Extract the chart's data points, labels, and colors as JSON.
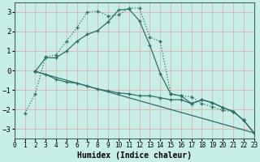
{
  "xlabel": "Humidex (Indice chaleur)",
  "bg_color": "#c8eee8",
  "grid_color": "#ddb8b8",
  "line_color": "#2d6e65",
  "xlim": [
    0,
    23
  ],
  "ylim": [
    -3.5,
    3.5
  ],
  "yticks": [
    -3,
    -2,
    -1,
    0,
    1,
    2,
    3
  ],
  "xticks": [
    0,
    1,
    2,
    3,
    4,
    5,
    6,
    7,
    8,
    9,
    10,
    11,
    12,
    13,
    14,
    15,
    16,
    17,
    18,
    19,
    20,
    21,
    22,
    23
  ],
  "series": [
    {
      "x": [
        1,
        2,
        3,
        4,
        5,
        6,
        7,
        8,
        9,
        10,
        11,
        12,
        13,
        14,
        15,
        16,
        17,
        18,
        19,
        20,
        21,
        22,
        23
      ],
      "y": [
        -2.2,
        -1.2,
        0.7,
        0.8,
        1.5,
        2.2,
        3.0,
        3.05,
        2.8,
        2.85,
        3.2,
        3.2,
        1.7,
        1.5,
        -1.2,
        -1.3,
        -1.35,
        -1.7,
        -1.85,
        -2.05,
        -2.1,
        -2.55,
        -3.2
      ],
      "linestyle": "dotted"
    },
    {
      "x": [
        2,
        3,
        4,
        5,
        6,
        7,
        8,
        9,
        10,
        11,
        12,
        13,
        14,
        15,
        16,
        17,
        18,
        19,
        20,
        21,
        22,
        23
      ],
      "y": [
        -0.05,
        0.65,
        0.65,
        1.0,
        1.5,
        1.85,
        2.05,
        2.5,
        3.1,
        3.15,
        2.55,
        1.3,
        -0.15,
        -1.2,
        -1.3,
        -1.7,
        -1.5,
        -1.65,
        -1.9,
        -2.1,
        -2.55,
        -3.2
      ],
      "linestyle": "solid"
    },
    {
      "x": [
        2,
        23
      ],
      "y": [
        -0.05,
        -3.2
      ],
      "linestyle": "solid"
    },
    {
      "x": [
        2,
        3,
        4,
        5,
        6,
        7,
        8,
        9,
        10,
        11,
        12,
        13,
        14,
        15,
        16,
        17,
        18,
        19,
        20,
        21,
        22,
        23
      ],
      "y": [
        -0.05,
        -0.2,
        -0.45,
        -0.6,
        -0.65,
        -0.8,
        -0.95,
        -1.05,
        -1.15,
        -1.2,
        -1.3,
        -1.3,
        -1.4,
        -1.5,
        -1.5,
        -1.7,
        -1.5,
        -1.65,
        -1.9,
        -2.1,
        -2.55,
        -3.2
      ],
      "linestyle": "solid"
    }
  ]
}
